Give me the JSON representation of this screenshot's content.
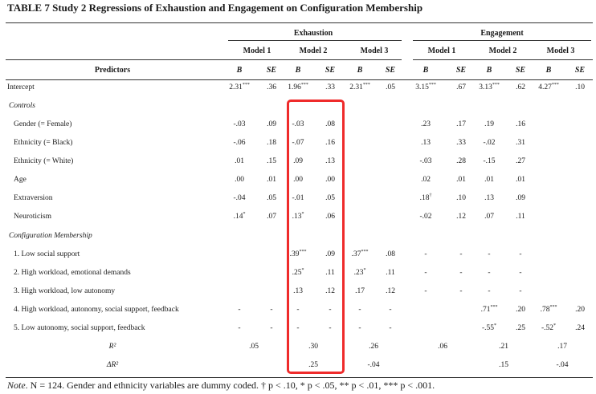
{
  "title": "TABLE 7 Study 2 Regressions of Exhaustion and Engagement on Configuration Membership",
  "groups": {
    "exhaustion": "Exhaustion",
    "engagement": "Engagement"
  },
  "models": [
    "Model 1",
    "Model 2",
    "Model 3",
    "Model 1",
    "Model 2",
    "Model 3"
  ],
  "predictors_label": "Predictors",
  "col_labels": [
    "B",
    "SE",
    "B",
    "SE",
    "B",
    "SE",
    "B",
    "SE",
    "B",
    "SE",
    "B",
    "SE"
  ],
  "sections": {
    "controls": "Controls",
    "config": "Configuration Membership"
  },
  "rows": {
    "intercept": {
      "label": "Intercept",
      "cells": [
        [
          "2.31",
          "***"
        ],
        [
          ".36",
          ""
        ],
        [
          "1.96",
          "***"
        ],
        [
          ".33",
          ""
        ],
        [
          "2.31",
          "***"
        ],
        [
          ".05",
          ""
        ],
        [
          "3.15",
          "***"
        ],
        [
          ".67",
          ""
        ],
        [
          "3.13",
          "***"
        ],
        [
          ".62",
          ""
        ],
        [
          "4.27",
          "***"
        ],
        [
          ".10",
          ""
        ]
      ]
    },
    "gender": {
      "label": "Gender (= Female)",
      "cells": [
        [
          "-.03",
          ""
        ],
        [
          ".09",
          ""
        ],
        [
          "-.03",
          ""
        ],
        [
          ".08",
          ""
        ],
        [
          "",
          ""
        ],
        [
          "",
          ""
        ],
        [
          ".23",
          ""
        ],
        [
          ".17",
          ""
        ],
        [
          ".19",
          ""
        ],
        [
          ".16",
          ""
        ],
        [
          "",
          ""
        ],
        [
          "",
          ""
        ]
      ]
    },
    "eth_black": {
      "label": "Ethnicity (= Black)",
      "cells": [
        [
          "-.06",
          ""
        ],
        [
          ".18",
          ""
        ],
        [
          "-.07",
          ""
        ],
        [
          ".16",
          ""
        ],
        [
          "",
          ""
        ],
        [
          "",
          ""
        ],
        [
          ".13",
          ""
        ],
        [
          ".33",
          ""
        ],
        [
          "-.02",
          ""
        ],
        [
          ".31",
          ""
        ],
        [
          "",
          ""
        ],
        [
          "",
          ""
        ]
      ]
    },
    "eth_white": {
      "label": "Ethnicity (= White)",
      "cells": [
        [
          ".01",
          ""
        ],
        [
          ".15",
          ""
        ],
        [
          ".09",
          ""
        ],
        [
          ".13",
          ""
        ],
        [
          "",
          ""
        ],
        [
          "",
          ""
        ],
        [
          "-.03",
          ""
        ],
        [
          ".28",
          ""
        ],
        [
          "-.15",
          ""
        ],
        [
          ".27",
          ""
        ],
        [
          "",
          ""
        ],
        [
          "",
          ""
        ]
      ]
    },
    "age": {
      "label": "Age",
      "cells": [
        [
          ".00",
          ""
        ],
        [
          ".01",
          ""
        ],
        [
          ".00",
          ""
        ],
        [
          ".00",
          ""
        ],
        [
          "",
          ""
        ],
        [
          "",
          ""
        ],
        [
          ".02",
          ""
        ],
        [
          ".01",
          ""
        ],
        [
          ".01",
          ""
        ],
        [
          ".01",
          ""
        ],
        [
          "",
          ""
        ],
        [
          "",
          ""
        ]
      ]
    },
    "extraversion": {
      "label": "Extraversion",
      "cells": [
        [
          "-.04",
          ""
        ],
        [
          ".05",
          ""
        ],
        [
          "-.01",
          ""
        ],
        [
          ".05",
          ""
        ],
        [
          "",
          ""
        ],
        [
          "",
          ""
        ],
        [
          ".18",
          "†"
        ],
        [
          ".10",
          ""
        ],
        [
          ".13",
          ""
        ],
        [
          ".09",
          ""
        ],
        [
          "",
          ""
        ],
        [
          "",
          ""
        ]
      ]
    },
    "neuroticism": {
      "label": "Neuroticism",
      "cells": [
        [
          ".14",
          "*"
        ],
        [
          ".07",
          ""
        ],
        [
          ".13",
          "*"
        ],
        [
          ".06",
          ""
        ],
        [
          "",
          ""
        ],
        [
          "",
          ""
        ],
        [
          "-.02",
          ""
        ],
        [
          ".12",
          ""
        ],
        [
          ".07",
          ""
        ],
        [
          ".11",
          ""
        ],
        [
          "",
          ""
        ],
        [
          "",
          ""
        ]
      ]
    },
    "c1": {
      "label": "1. Low social support",
      "cells": [
        [
          "",
          ""
        ],
        [
          "",
          ""
        ],
        [
          ".39",
          "***"
        ],
        [
          ".09",
          ""
        ],
        [
          ".37",
          "***"
        ],
        [
          ".08",
          ""
        ],
        [
          "-",
          ""
        ],
        [
          "-",
          ""
        ],
        [
          "-",
          ""
        ],
        [
          "-",
          ""
        ],
        [
          "",
          ""
        ],
        [
          "",
          ""
        ]
      ]
    },
    "c2": {
      "label": "2. High workload, emotional demands",
      "cells": [
        [
          "",
          ""
        ],
        [
          "",
          ""
        ],
        [
          ".25",
          "*"
        ],
        [
          ".11",
          ""
        ],
        [
          ".23",
          "*"
        ],
        [
          ".11",
          ""
        ],
        [
          "-",
          ""
        ],
        [
          "-",
          ""
        ],
        [
          "-",
          ""
        ],
        [
          "-",
          ""
        ],
        [
          "",
          ""
        ],
        [
          "",
          ""
        ]
      ]
    },
    "c3": {
      "label": "3. High workload, low autonomy",
      "cells": [
        [
          "",
          ""
        ],
        [
          "",
          ""
        ],
        [
          ".13",
          ""
        ],
        [
          ".12",
          ""
        ],
        [
          ".17",
          ""
        ],
        [
          ".12",
          ""
        ],
        [
          "-",
          ""
        ],
        [
          "-",
          ""
        ],
        [
          "-",
          ""
        ],
        [
          "-",
          ""
        ],
        [
          "",
          ""
        ],
        [
          "",
          ""
        ]
      ]
    },
    "c4": {
      "label": "4. High workload, autonomy, social support, feedback",
      "cells": [
        [
          "-",
          ""
        ],
        [
          "-",
          ""
        ],
        [
          "-",
          ""
        ],
        [
          "-",
          ""
        ],
        [
          "-",
          ""
        ],
        [
          "-",
          ""
        ],
        [
          "",
          ""
        ],
        [
          "",
          ""
        ],
        [
          ".71",
          "***"
        ],
        [
          ".20",
          ""
        ],
        [
          ".78",
          "***"
        ],
        [
          ".20",
          ""
        ]
      ]
    },
    "c5": {
      "label": "5. Low autonomy, social support, feedback",
      "cells": [
        [
          "-",
          ""
        ],
        [
          "-",
          ""
        ],
        [
          "-",
          ""
        ],
        [
          "-",
          ""
        ],
        [
          "-",
          ""
        ],
        [
          "-",
          ""
        ],
        [
          "",
          ""
        ],
        [
          "",
          ""
        ],
        [
          "-.55",
          "*"
        ],
        [
          ".25",
          ""
        ],
        [
          "-.52",
          "*"
        ],
        [
          ".24",
          ""
        ]
      ]
    }
  },
  "r2": {
    "label": "R²",
    "values": [
      ".05",
      ".30",
      ".26",
      ".06",
      ".21",
      ".17"
    ]
  },
  "dr2": {
    "label": "ΔR²",
    "values": [
      "",
      ".25",
      "-.04",
      "",
      ".15",
      "-.04"
    ]
  },
  "note": {
    "prefix": "Note",
    "text": ". N = 124. Gender and ethnicity variables are dummy coded. † p < .10, * p < .05, ** p < .01, *** p < .001."
  },
  "highlight_color": "#ef2b2b"
}
